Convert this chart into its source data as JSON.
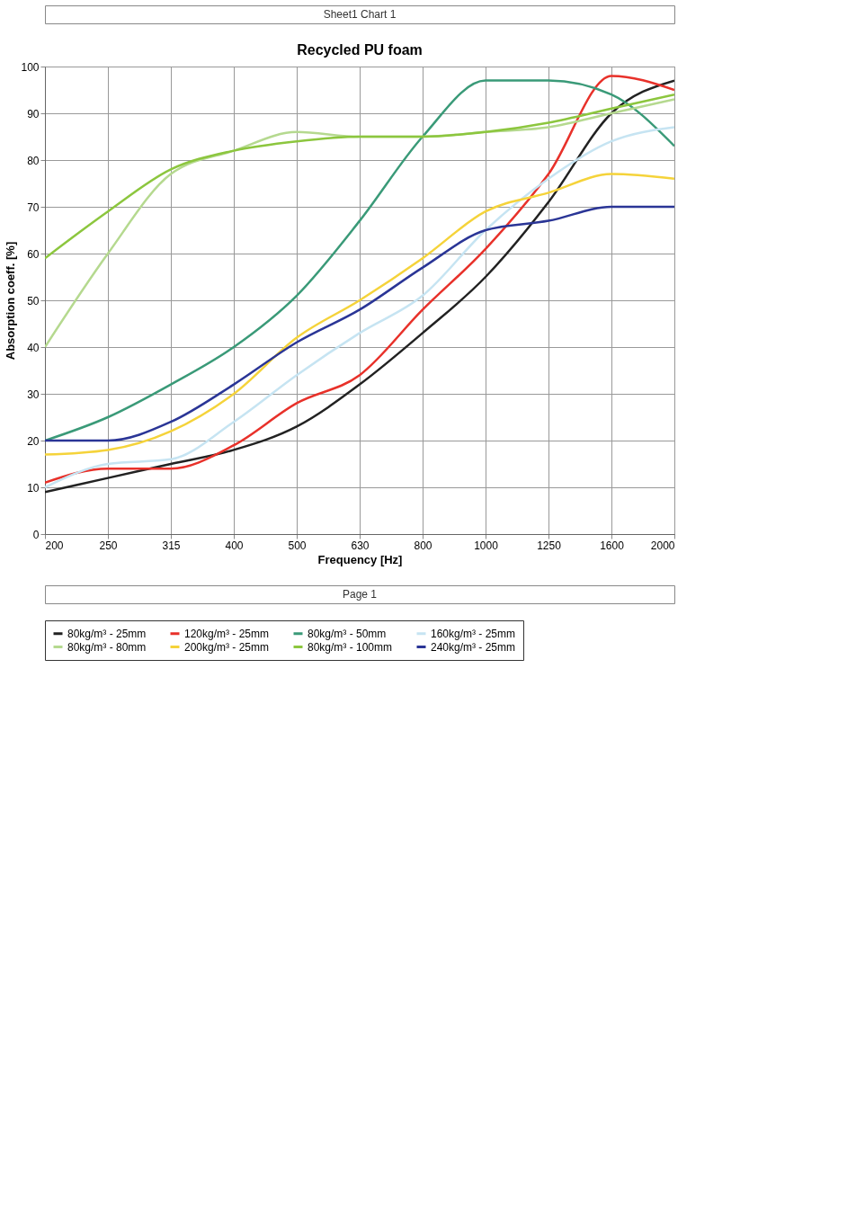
{
  "chart_data": {
    "type": "line",
    "title": "Recycled PU foam",
    "xlabel": "Frequency [Hz]",
    "ylabel": "Absorption coeff. [%]",
    "categories": [
      "200",
      "250",
      "315",
      "400",
      "500",
      "630",
      "800",
      "1000",
      "1250",
      "1600",
      "2000"
    ],
    "ylim": [
      0,
      100
    ],
    "yticks": [
      0,
      10,
      20,
      30,
      40,
      50,
      60,
      70,
      80,
      90,
      100
    ],
    "grid": true,
    "legend": "bottom",
    "marker": "none",
    "line_style": "solid",
    "annotations": [
      "Sheet1 Chart 1",
      "Page 1"
    ],
    "series": [
      {
        "name": "80kg/m³ - 25mm",
        "color": "#222222",
        "values": [
          9,
          12,
          15,
          18,
          23,
          32,
          43,
          55,
          71,
          90,
          97
        ]
      },
      {
        "name": "120kg/m³ - 25mm",
        "color": "#e8312a",
        "values": [
          11,
          14,
          14,
          19,
          28,
          34,
          48,
          61,
          77,
          98,
          95
        ]
      },
      {
        "name": "80kg/m³ - 50mm",
        "color": "#3a9a78",
        "values": [
          20,
          25,
          32,
          40,
          51,
          67,
          85,
          97,
          97,
          94,
          83
        ]
      },
      {
        "name": "160kg/m³ - 25mm",
        "color": "#c6e4f2",
        "values": [
          10,
          15,
          16,
          24,
          34,
          43,
          51,
          65,
          76,
          84,
          87
        ]
      },
      {
        "name": "80kg/m³ - 80mm",
        "color": "#b5d98f",
        "values": [
          40,
          60,
          77,
          82,
          86,
          85,
          85,
          86,
          87,
          90,
          93
        ]
      },
      {
        "name": "200kg/m³ - 25mm",
        "color": "#f5d33a",
        "values": [
          17,
          18,
          22,
          30,
          42,
          50,
          59,
          69,
          73,
          77,
          76
        ]
      },
      {
        "name": "80kg/m³ - 100mm",
        "color": "#8cc63e",
        "values": [
          59,
          69,
          78,
          82,
          84,
          85,
          85,
          86,
          88,
          91,
          94
        ]
      },
      {
        "name": "240kg/m³ - 25mm",
        "color": "#2a3596",
        "values": [
          20,
          20,
          24,
          32,
          41,
          48,
          57,
          65,
          67,
          70,
          70
        ]
      }
    ]
  }
}
